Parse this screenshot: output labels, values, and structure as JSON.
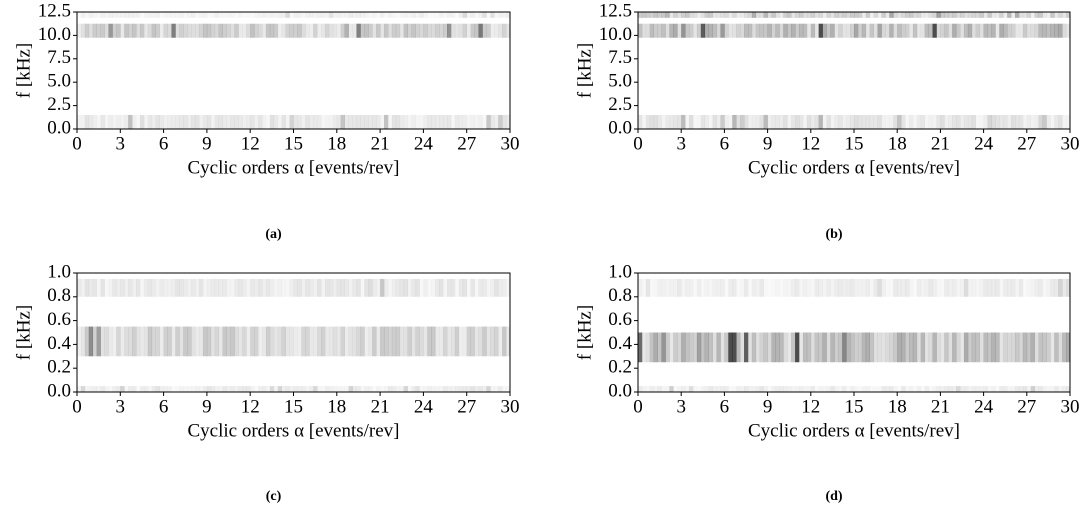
{
  "chart_data": [
    {
      "type": "heatmap",
      "caption": "(a)",
      "xlabel": "Cyclic orders α [events/rev]",
      "ylabel": "f [kHz]",
      "xlim": [
        0,
        30
      ],
      "xticks": [
        0,
        3,
        6,
        9,
        12,
        15,
        18,
        21,
        24,
        27,
        30
      ],
      "ylim": [
        0,
        12.5
      ],
      "yticks": [
        {
          "value": 0,
          "label": "0.0"
        },
        {
          "value": 2.5,
          "label": "2.5"
        },
        {
          "value": 5,
          "label": "5.0"
        },
        {
          "value": 7.5,
          "label": "7.5"
        },
        {
          "value": 10,
          "label": "10.0"
        },
        {
          "value": 12.5,
          "label": "12.5"
        }
      ]
    },
    {
      "type": "heatmap",
      "caption": "(b)",
      "xlabel": "Cyclic orders α [events/rev]",
      "ylabel": "f [kHz]",
      "xlim": [
        0,
        30
      ],
      "xticks": [
        0,
        3,
        6,
        9,
        12,
        15,
        18,
        21,
        24,
        27,
        30
      ],
      "ylim": [
        0,
        12.5
      ],
      "yticks": [
        {
          "value": 0,
          "label": "0.0"
        },
        {
          "value": 2.5,
          "label": "2.5"
        },
        {
          "value": 5,
          "label": "5.0"
        },
        {
          "value": 7.5,
          "label": "7.5"
        },
        {
          "value": 10,
          "label": "10.0"
        },
        {
          "value": 12.5,
          "label": "12.5"
        }
      ]
    },
    {
      "type": "heatmap",
      "caption": "(c)",
      "xlabel": "Cyclic orders α [events/rev]",
      "ylabel": "f [kHz]",
      "xlim": [
        0,
        30
      ],
      "xticks": [
        0,
        3,
        6,
        9,
        12,
        15,
        18,
        21,
        24,
        27,
        30
      ],
      "ylim": [
        0,
        1
      ],
      "yticks": [
        {
          "value": 0,
          "label": "0.0"
        },
        {
          "value": 0.2,
          "label": "0.2"
        },
        {
          "value": 0.4,
          "label": "0.4"
        },
        {
          "value": 0.6,
          "label": "0.6"
        },
        {
          "value": 0.8,
          "label": "0.8"
        },
        {
          "value": 1,
          "label": "1.0"
        }
      ]
    },
    {
      "type": "heatmap",
      "caption": "(d)",
      "xlabel": "Cyclic orders α [events/rev]",
      "ylabel": "f [kHz]",
      "xlim": [
        0,
        30
      ],
      "xticks": [
        0,
        3,
        6,
        9,
        12,
        15,
        18,
        21,
        24,
        27,
        30
      ],
      "ylim": [
        0,
        1
      ],
      "yticks": [
        {
          "value": 0,
          "label": "0.0"
        },
        {
          "value": 0.2,
          "label": "0.2"
        },
        {
          "value": 0.4,
          "label": "0.4"
        },
        {
          "value": 0.6,
          "label": "0.6"
        },
        {
          "value": 0.8,
          "label": "0.8"
        },
        {
          "value": 1,
          "label": "1.0"
        }
      ]
    }
  ]
}
